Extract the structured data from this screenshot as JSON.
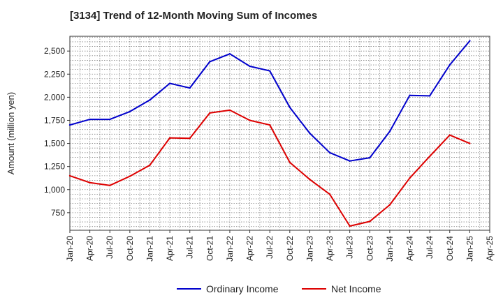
{
  "chart_data": {
    "type": "line",
    "title": "[3134]  Trend of 12-Month Moving Sum of Incomes",
    "xlabel": "",
    "ylabel": "Amount (million yen)",
    "categories": [
      "Jan-20",
      "Apr-20",
      "Jul-20",
      "Oct-20",
      "Jan-21",
      "Apr-21",
      "Jul-21",
      "Oct-21",
      "Jan-22",
      "Apr-22",
      "Jul-22",
      "Oct-22",
      "Jan-23",
      "Apr-23",
      "Jul-23",
      "Oct-23",
      "Jan-24",
      "Apr-24",
      "Jul-24",
      "Oct-24",
      "Jan-25",
      "Apr-25"
    ],
    "ylim": [
      560,
      2660
    ],
    "yticks": [
      750,
      1000,
      1250,
      1500,
      1750,
      2000,
      2250,
      2500
    ],
    "ytick_labels": [
      "750",
      "1,000",
      "1,250",
      "1,500",
      "1,750",
      "2,000",
      "2,250",
      "2,500"
    ],
    "grid": true,
    "legend_position": "bottom-center",
    "series": [
      {
        "name": "Ordinary Income",
        "color": "#0000cc",
        "values": [
          1700,
          1760,
          1760,
          1845,
          1970,
          2150,
          2100,
          2385,
          2470,
          2335,
          2285,
          1890,
          1610,
          1400,
          1310,
          1345,
          1630,
          2020,
          2015,
          2350,
          2610,
          null
        ]
      },
      {
        "name": "Net Income",
        "color": "#dd0000",
        "values": [
          1150,
          1075,
          1045,
          1145,
          1265,
          1560,
          1555,
          1830,
          1860,
          1750,
          1700,
          1295,
          1110,
          950,
          605,
          655,
          835,
          1125,
          1360,
          1590,
          1500,
          null
        ]
      }
    ]
  }
}
